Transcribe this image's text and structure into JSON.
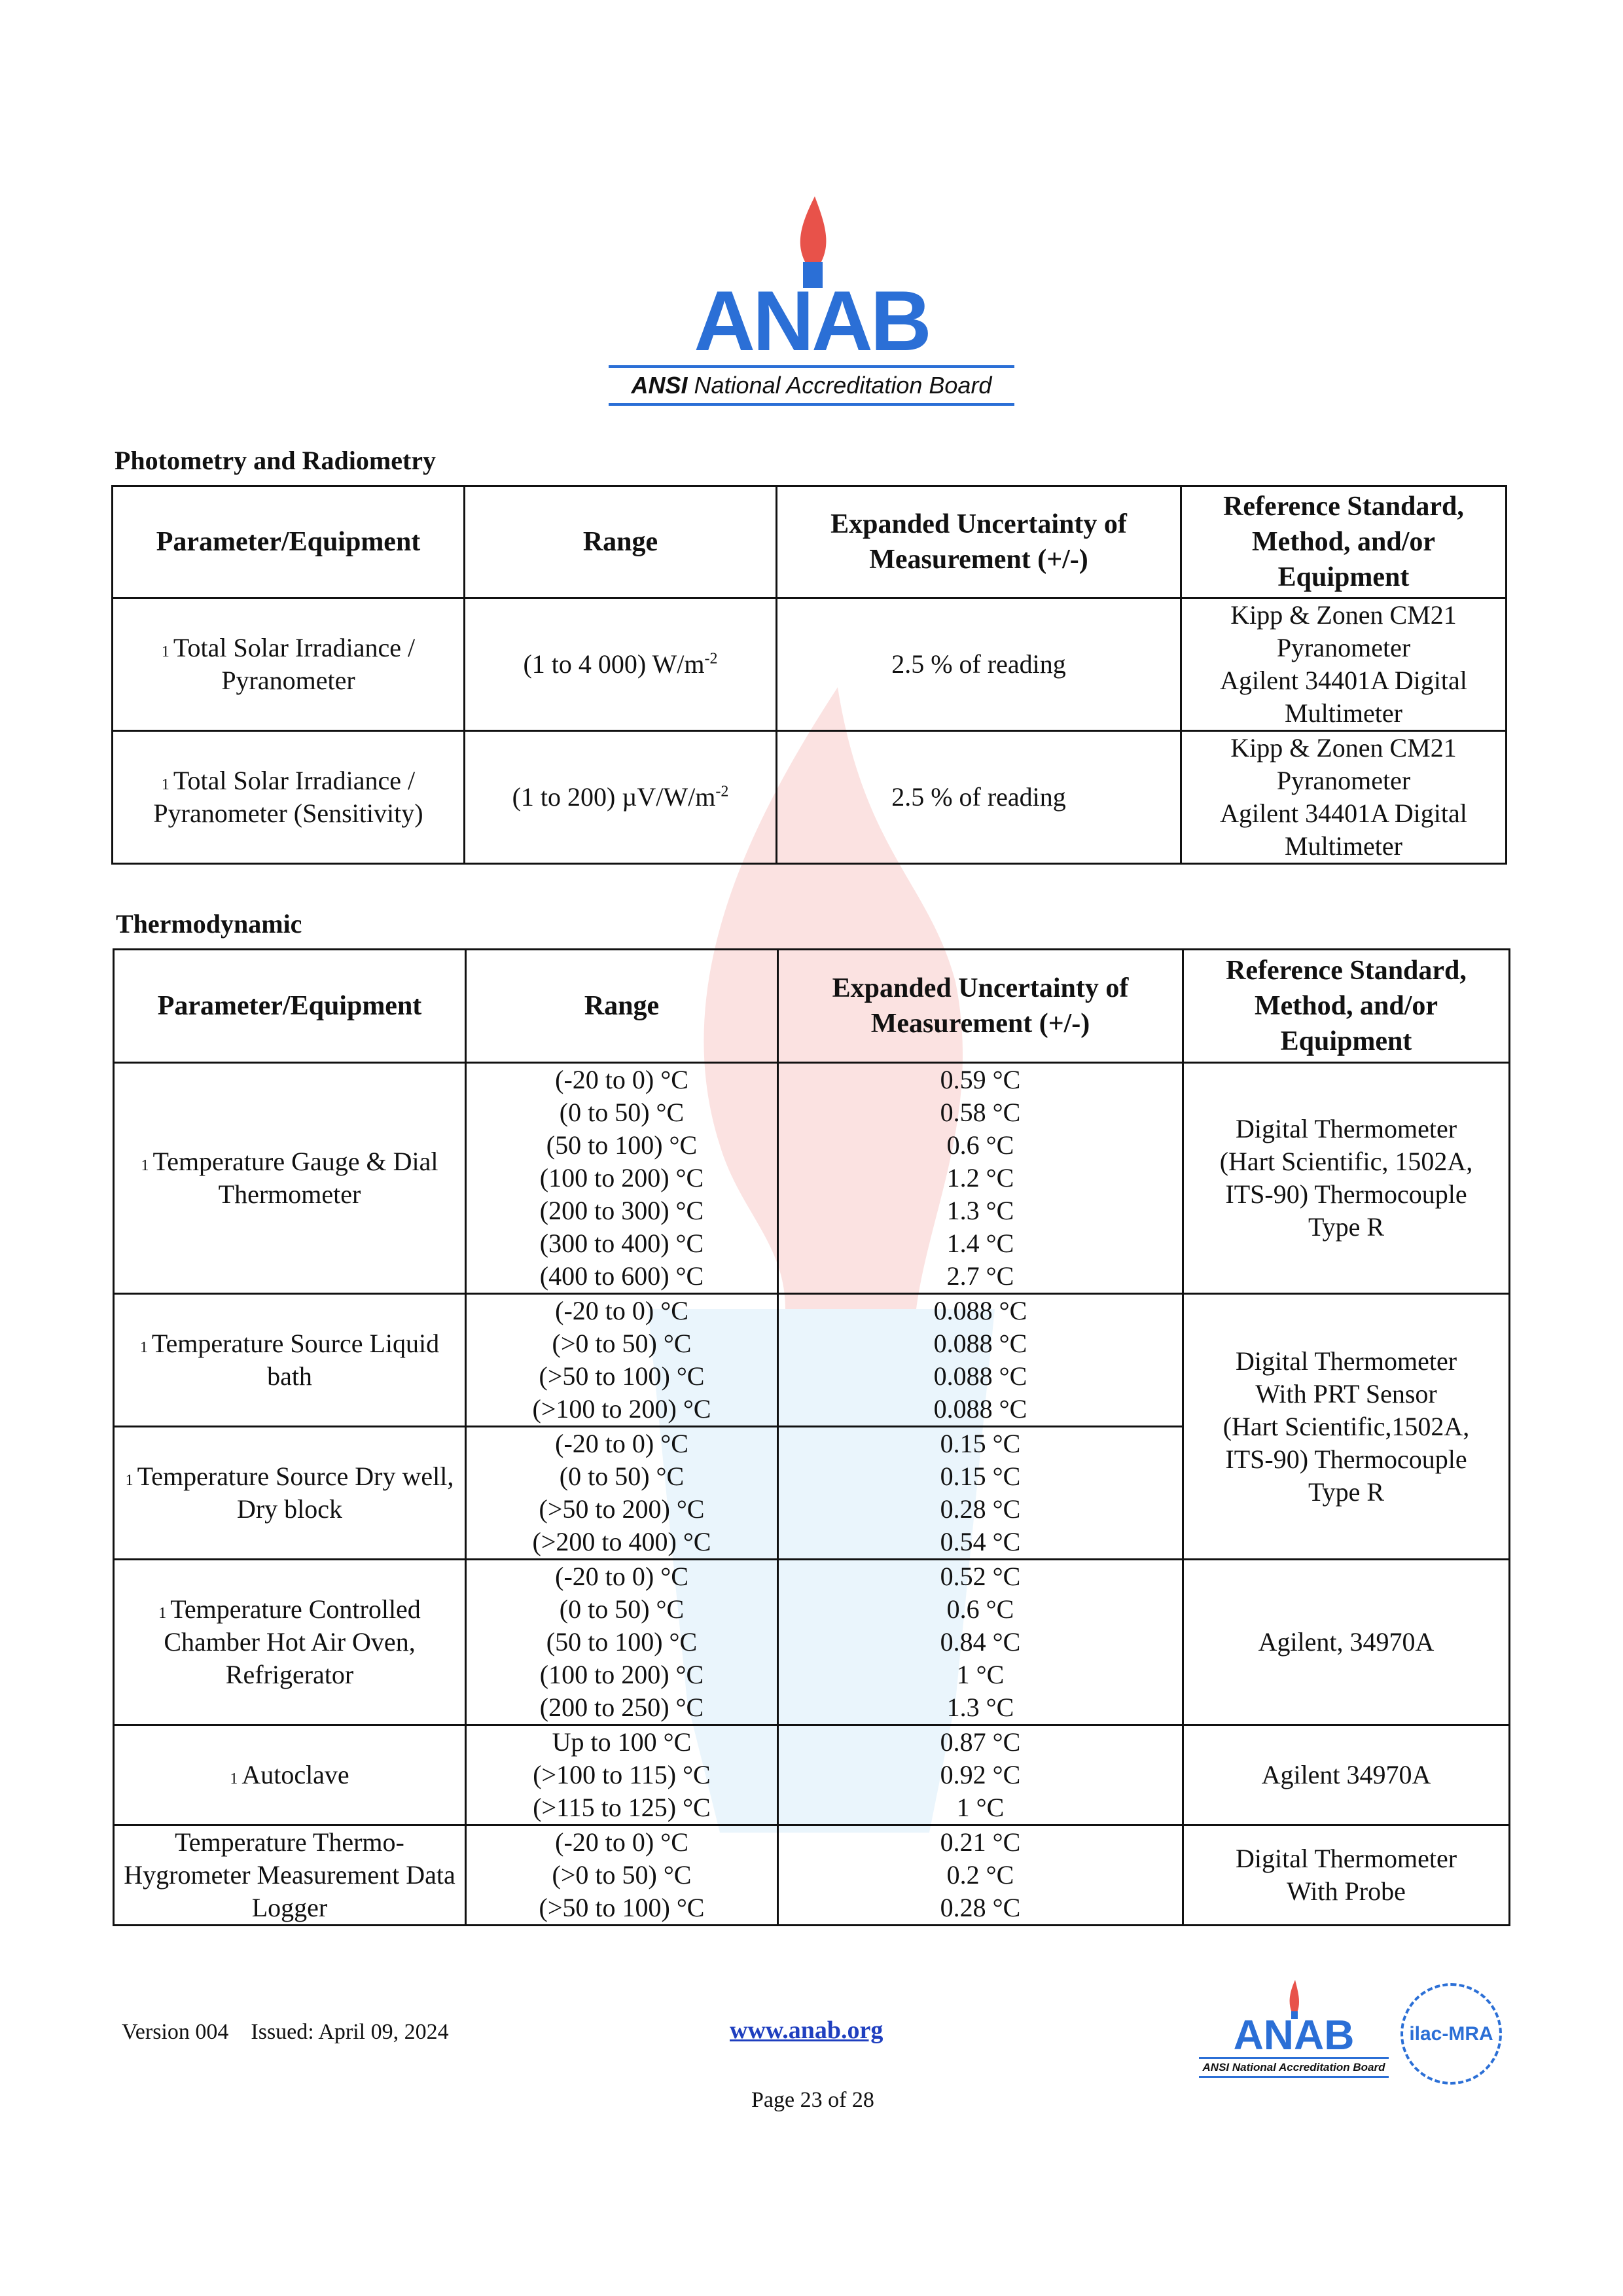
{
  "header_logo": {
    "word": "ANAB",
    "tagline_bold": "ANSI",
    "tagline_rest": " National Accreditation Board"
  },
  "colors": {
    "brand_blue": "#2b6fd6",
    "flame_red": "#e8524a"
  },
  "headers": [
    "Parameter/Equipment",
    "Range",
    "Expanded Uncertainty of Measurement (+/-)",
    "Reference Standard, Method, and/or Equipment"
  ],
  "photometry": {
    "title": "Photometry and Radiometry",
    "rows": [
      {
        "note": "1",
        "param": "Total Solar Irradiance / Pyranometer",
        "range": [
          {
            "text": "(1 to 4 000) W/m",
            "sup": "-2"
          }
        ],
        "unc": [
          "2.5 % of reading"
        ],
        "ref": [
          "Kipp & Zonen CM21",
          "Pyranometer",
          "Agilent 34401A Digital",
          "Multimeter"
        ]
      },
      {
        "note": "1",
        "param": "Total Solar Irradiance / Pyranometer (Sensitivity)",
        "range": [
          {
            "text": "(1 to 200) µV/W/m",
            "sup": "-2"
          }
        ],
        "unc": [
          "2.5 % of reading"
        ],
        "ref": [
          "Kipp & Zonen CM21",
          "Pyranometer",
          "Agilent 34401A Digital",
          "Multimeter"
        ]
      }
    ]
  },
  "thermo": {
    "title": "Thermodynamic",
    "rows": [
      {
        "note": "1",
        "param": "Temperature Gauge & Dial Thermometer",
        "range": [
          "(-20 to 0) °C",
          "(0 to 50) °C",
          "(50 to 100) °C",
          "(100 to 200) °C",
          "(200 to 300) °C",
          "(300 to 400) °C",
          "(400 to 600) °C"
        ],
        "unc": [
          "0.59 °C",
          "0.58 °C",
          "0.6 °C",
          "1.2 °C",
          "1.3 °C",
          "1.4 °C",
          "2.7 °C"
        ],
        "ref": [
          "Digital Thermometer",
          "(Hart Scientific, 1502A,",
          "ITS-90) Thermocouple",
          "Type R"
        ],
        "span": 1
      },
      {
        "note": "1",
        "param": "Temperature Source Liquid bath",
        "range": [
          "(-20 to 0) °C",
          "(>0 to 50) °C",
          "(>50 to 100) °C",
          "(>100 to 200) °C"
        ],
        "unc": [
          "0.088 °C",
          "0.088 °C",
          "0.088 °C",
          "0.088 °C"
        ],
        "ref": [
          "Digital Thermometer",
          "With PRT Sensor",
          "(Hart Scientific,1502A,",
          "ITS-90) Thermocouple",
          "Type R"
        ],
        "span": 2
      },
      {
        "note": "1",
        "param": "Temperature Source Dry well, Dry block",
        "range": [
          "(-20 to 0) °C",
          "(0 to 50) °C",
          "(>50 to 200) °C",
          "(>200 to 400) °C"
        ],
        "unc": [
          "0.15 °C",
          "0.15 °C",
          "0.28 °C",
          "0.54 °C"
        ],
        "ref": null
      },
      {
        "note": "1",
        "param": "Temperature Controlled Chamber Hot Air Oven, Refrigerator",
        "range": [
          "(-20 to 0) °C",
          "(0 to 50) °C",
          "(50 to 100) °C",
          "(100 to 200) °C",
          "(200 to 250) °C"
        ],
        "unc": [
          "0.52 °C",
          "0.6 °C",
          "0.84 °C",
          "1 °C",
          "1.3 °C"
        ],
        "ref": [
          "Agilent, 34970A"
        ],
        "span": 1
      },
      {
        "note": "1",
        "param": "Autoclave",
        "range": [
          "Up to 100 °C",
          "(>100 to 115) °C",
          "(>115 to 125) °C"
        ],
        "unc": [
          "0.87 °C",
          "0.92 °C",
          "1 °C"
        ],
        "ref": [
          "Agilent 34970A"
        ],
        "span": 1
      },
      {
        "note": "",
        "param": "Temperature Thermo-Hygrometer Measurement Data Logger",
        "range": [
          "(-20 to 0) °C",
          "(>0 to 50) °C",
          "(>50 to 100) °C"
        ],
        "unc": [
          "0.21 °C",
          "0.2 °C",
          "0.28 °C"
        ],
        "ref": [
          "Digital Thermometer",
          "With Probe"
        ],
        "span": 1
      }
    ]
  },
  "footer": {
    "version": "Version 004",
    "issued": "Issued: April 09, 2024",
    "link": "www.anab.org",
    "page": "Page 23 of 28",
    "logo_word": "ANAB",
    "logo_tagline": "ANSI National Accreditation Board",
    "ilac": "ilac-MRA"
  }
}
